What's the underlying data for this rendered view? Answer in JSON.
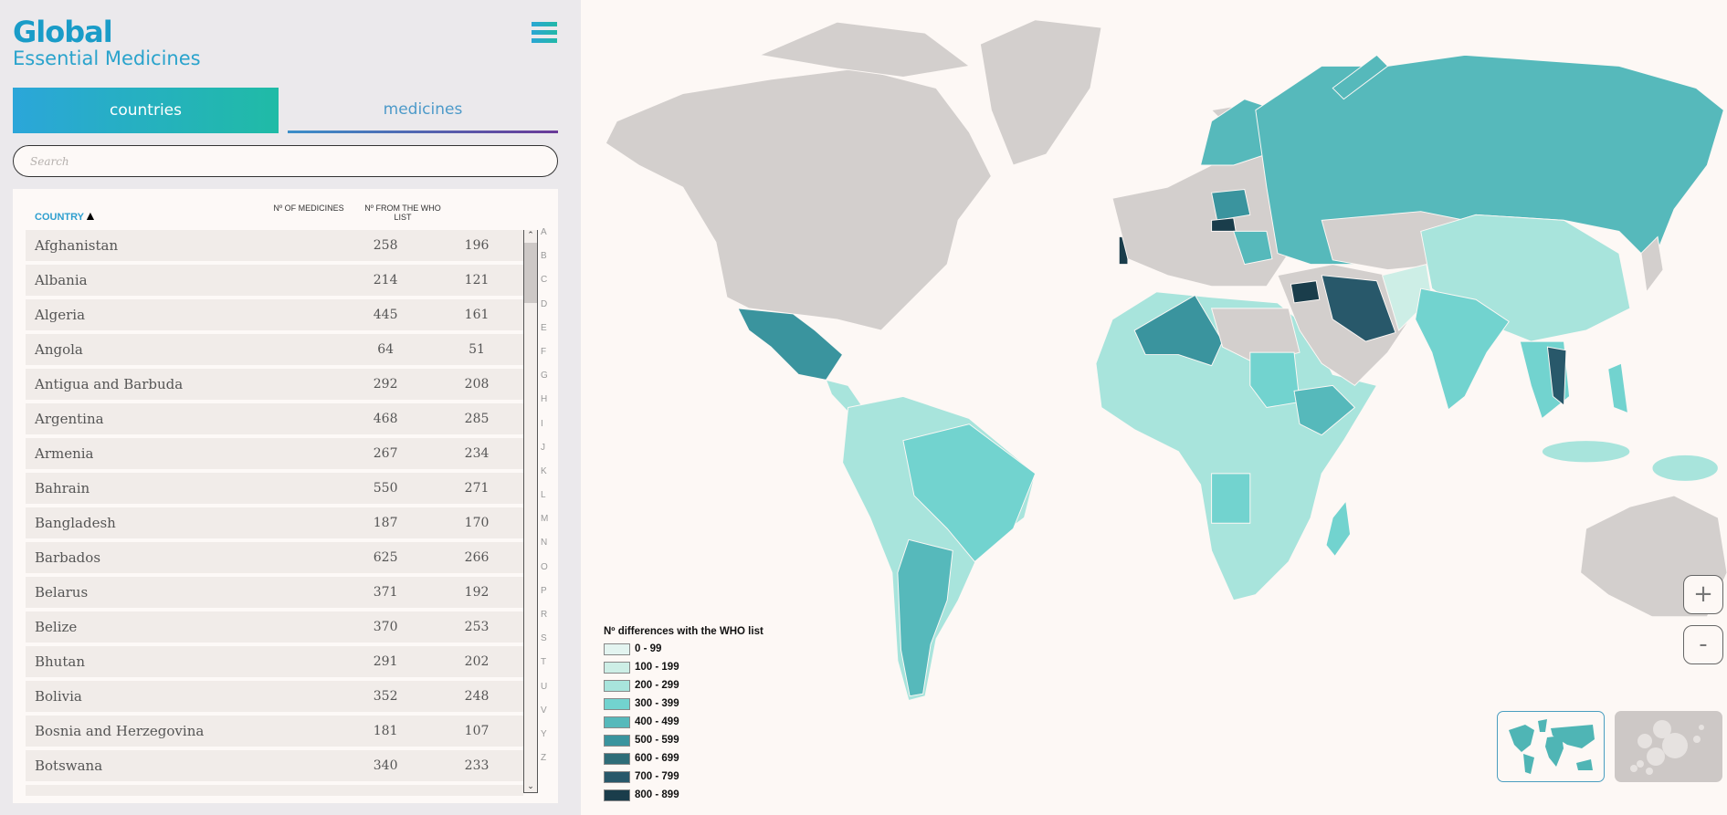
{
  "header": {
    "title": "Global",
    "subtitle": "Essential Medicines"
  },
  "tabs": [
    {
      "label": "countries",
      "active": true
    },
    {
      "label": "medicines",
      "active": false
    }
  ],
  "search": {
    "placeholder": "Search",
    "value": ""
  },
  "table": {
    "columns": {
      "country": "COUNTRY",
      "sort_indicator": "▲",
      "medicines": "Nº OF MEDICINES",
      "who": "Nº FROM THE WHO LIST"
    },
    "rows": [
      {
        "country": "Afghanistan",
        "medicines": "258",
        "who": "196"
      },
      {
        "country": "Albania",
        "medicines": "214",
        "who": "121"
      },
      {
        "country": "Algeria",
        "medicines": "445",
        "who": "161"
      },
      {
        "country": "Angola",
        "medicines": "64",
        "who": "51"
      },
      {
        "country": "Antigua and Barbuda",
        "medicines": "292",
        "who": "208"
      },
      {
        "country": "Argentina",
        "medicines": "468",
        "who": "285"
      },
      {
        "country": "Armenia",
        "medicines": "267",
        "who": "234"
      },
      {
        "country": "Bahrain",
        "medicines": "550",
        "who": "271"
      },
      {
        "country": "Bangladesh",
        "medicines": "187",
        "who": "170"
      },
      {
        "country": "Barbados",
        "medicines": "625",
        "who": "266"
      },
      {
        "country": "Belarus",
        "medicines": "371",
        "who": "192"
      },
      {
        "country": "Belize",
        "medicines": "370",
        "who": "253"
      },
      {
        "country": "Bhutan",
        "medicines": "291",
        "who": "202"
      },
      {
        "country": "Bolivia",
        "medicines": "352",
        "who": "248"
      },
      {
        "country": "Bosnia and Herzegovina",
        "medicines": "181",
        "who": "107"
      },
      {
        "country": "Botswana",
        "medicines": "340",
        "who": "233"
      }
    ],
    "alphabet": [
      "A",
      "B",
      "C",
      "D",
      "E",
      "F",
      "G",
      "H",
      "I",
      "J",
      "K",
      "L",
      "M",
      "N",
      "O",
      "P",
      "R",
      "S",
      "T",
      "U",
      "V",
      "Y",
      "Z"
    ]
  },
  "legend": {
    "title": "Nº differences with the WHO list",
    "items": [
      {
        "label": "0 - 99",
        "color": "#e3f4f0"
      },
      {
        "label": "100 - 199",
        "color": "#cdeee6"
      },
      {
        "label": "200 - 299",
        "color": "#a8e4dc"
      },
      {
        "label": "300 - 399",
        "color": "#72d3cf"
      },
      {
        "label": "400 - 499",
        "color": "#56b9bb"
      },
      {
        "label": "500 - 599",
        "color": "#3a949e"
      },
      {
        "label": "600 - 699",
        "color": "#2f6d78"
      },
      {
        "label": "700 - 799",
        "color": "#28586a"
      },
      {
        "label": "800 - 899",
        "color": "#1a3d4b"
      }
    ]
  },
  "map": {
    "no_data_color": "#d3cfcd",
    "background": "#fdf8f5"
  },
  "controls": {
    "zoom_in": "+",
    "zoom_out": "-"
  },
  "view_toggle": [
    {
      "name": "world-map-view",
      "active": true
    },
    {
      "name": "bubble-view",
      "active": false
    }
  ]
}
